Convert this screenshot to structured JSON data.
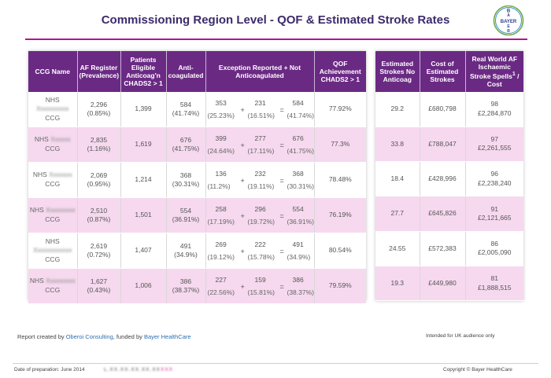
{
  "page": {
    "title": "Commissioning Region Level - QOF & Estimated Stroke Rates",
    "logo_text": {
      "top": "B",
      "left": "B",
      "center": "A",
      "right": "E",
      "bottom": "R",
      "vertical": "BAYER",
      "horizontal": "BAYER"
    }
  },
  "left_table": {
    "headers": {
      "ccg": "CCG Name",
      "af_register": "AF Register (Prevalence)",
      "eligible": "Patients Eligible Anticoag'n CHADS2 > 1",
      "anticoagulated": "Anti-coagulated",
      "exception": "Exception Reported + Not Anticoagulated",
      "qof": "QOF Achievement CHADS2 > 1"
    },
    "rows": [
      {
        "ccg_prefix": "NHS",
        "ccg_name_blurred": "Xxxxxxxxxx",
        "ccg_suffix": "CCG",
        "af": "2,296",
        "af_pct": "(0.85%)",
        "eligible": "1,399",
        "anti": "584",
        "anti_pct": "(41.74%)",
        "ex1": "353",
        "ex1_pct": "(25.23%)",
        "ex2": "231",
        "ex2_pct": "(16.51%)",
        "ex_total": "584",
        "ex_total_pct": "(41.74%)",
        "qof": "77.92%"
      },
      {
        "ccg_prefix": "NHS",
        "ccg_name_blurred": "Xxxxxx",
        "ccg_suffix": "CCG",
        "af": "2,835",
        "af_pct": "(1.16%)",
        "eligible": "1,619",
        "anti": "676",
        "anti_pct": "(41.75%)",
        "ex1": "399",
        "ex1_pct": "(24.64%)",
        "ex2": "277",
        "ex2_pct": "(17.11%)",
        "ex_total": "676",
        "ex_total_pct": "(41.75%)",
        "qof": "77.3%"
      },
      {
        "ccg_prefix": "NHS",
        "ccg_name_blurred": "Xxxxxxx",
        "ccg_suffix": "CCG",
        "af": "2,069",
        "af_pct": "(0.95%)",
        "eligible": "1,214",
        "anti": "368",
        "anti_pct": "(30.31%)",
        "ex1": "136",
        "ex1_pct": "(11.2%)",
        "ex2": "232",
        "ex2_pct": "(19.11%)",
        "ex_total": "368",
        "ex_total_pct": "(30.31%)",
        "qof": "78.48%"
      },
      {
        "ccg_prefix": "NHS",
        "ccg_name_blurred": "Xxxxxxxxx",
        "ccg_suffix": "CCG",
        "af": "2,510",
        "af_pct": "(0.87%)",
        "eligible": "1,501",
        "anti": "554",
        "anti_pct": "(36.91%)",
        "ex1": "258",
        "ex1_pct": "(17.19%)",
        "ex2": "296",
        "ex2_pct": "(19.72%)",
        "ex_total": "554",
        "ex_total_pct": "(36.91%)",
        "qof": "76.19%"
      },
      {
        "ccg_prefix": "NHS",
        "ccg_name_blurred": "Xxxxxxxxxxxx",
        "ccg_suffix": "CCG",
        "af": "2,619",
        "af_pct": "(0.72%)",
        "eligible": "1,407",
        "anti": "491",
        "anti_pct": "(34.9%)",
        "ex1": "269",
        "ex1_pct": "(19.12%)",
        "ex2": "222",
        "ex2_pct": "(15.78%)",
        "ex_total": "491",
        "ex_total_pct": "(34.9%)",
        "qof": "80.54%"
      },
      {
        "ccg_prefix": "NHS",
        "ccg_name_blurred": "Xxxxxxxxx",
        "ccg_suffix": "CCG",
        "af": "1,627",
        "af_pct": "(0.43%)",
        "eligible": "1,006",
        "anti": "386",
        "anti_pct": "(38.37%)",
        "ex1": "227",
        "ex1_pct": "(22.56%)",
        "ex2": "159",
        "ex2_pct": "(15.81%)",
        "ex_total": "386",
        "ex_total_pct": "(38.37%)",
        "qof": "79.59%"
      }
    ],
    "plus": "+",
    "equals": "="
  },
  "right_table": {
    "headers": {
      "strokes": "Estimated Strokes No Anticoag",
      "cost": "Cost of Estimated Strokes",
      "real_world": "Real World AF Ischaemic Stroke Spells",
      "real_world_sup": "1",
      "real_world_tail": "/ Cost"
    },
    "rows": [
      {
        "strokes": "29.2",
        "cost": "£680,798",
        "spells": "98",
        "spell_cost": "£2,284,870"
      },
      {
        "strokes": "33.8",
        "cost": "£788,047",
        "spells": "97",
        "spell_cost": "£2,261,555"
      },
      {
        "strokes": "18.4",
        "cost": "£428,996",
        "spells": "96",
        "spell_cost": "£2,238,240"
      },
      {
        "strokes": "27.7",
        "cost": "£645,826",
        "spells": "91",
        "spell_cost": "£2,121,665"
      },
      {
        "strokes": "24.55",
        "cost": "£572,383",
        "spells": "86",
        "spell_cost": "£2,005,090"
      },
      {
        "strokes": "19.3",
        "cost": "£449,980",
        "spells": "81",
        "spell_cost": "£1,888,515"
      }
    ]
  },
  "footer": {
    "created_prefix": "Report created by ",
    "creator": "Oberoi Consulting",
    "funded_prefix": ", funded by ",
    "funder": "Bayer HealthCare",
    "audience": "Intended for UK audience only",
    "date": "Date of preparation: June 2014",
    "ref_code": "L.XX.XX.XX.XX.XX",
    "ref_suffix": "XXX",
    "copyright": "Copyright © Bayer HealthCare"
  },
  "colors": {
    "header_bg": "#6a2a83",
    "title": "#3d2a6b",
    "accent_rule": "#b0178f",
    "row_highlight": "#f6d9ee",
    "link": "#2a6fb5"
  }
}
